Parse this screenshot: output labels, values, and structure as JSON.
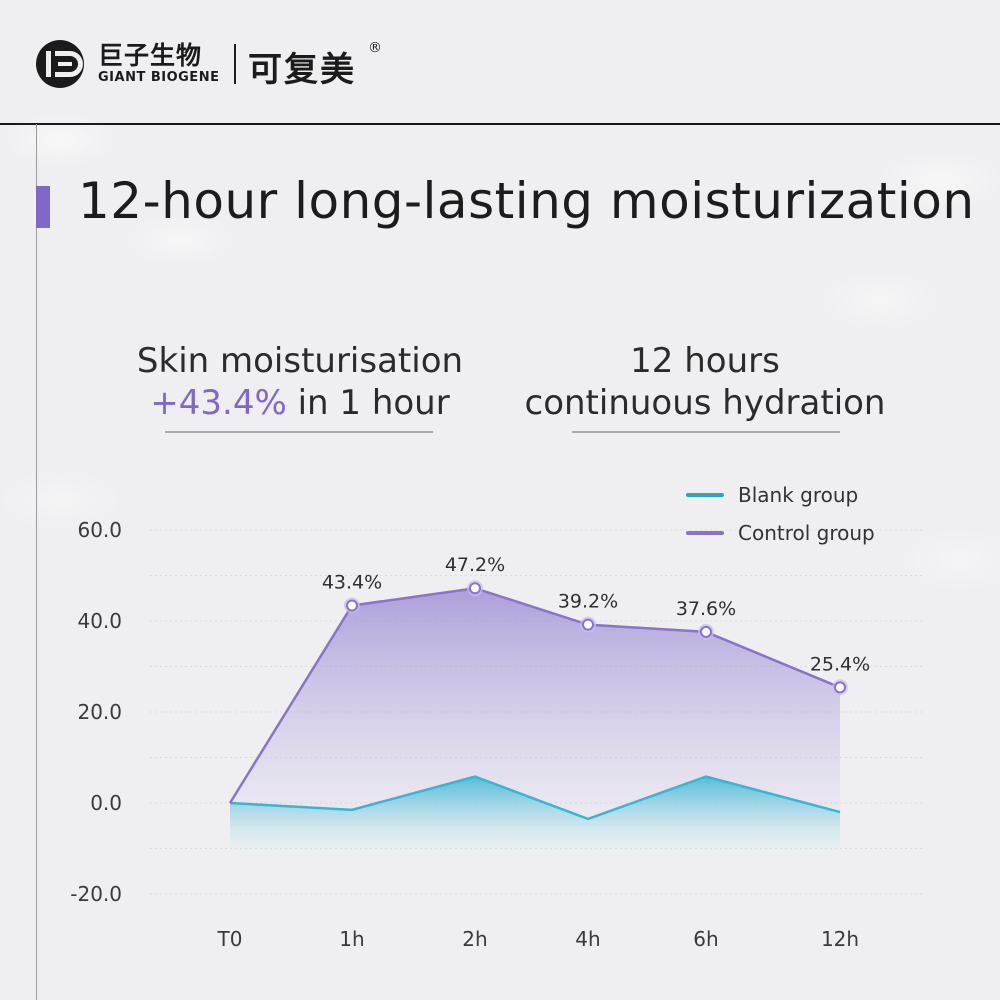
{
  "header": {
    "brand_cn": "巨子生物",
    "brand_en": "GIANT BIOGENE",
    "product_cn": "可复美",
    "registered_mark": "®"
  },
  "title": "12-hour long-lasting moisturization",
  "stats": {
    "left": {
      "line1": "Skin moisturisation",
      "line2_accent": "+43.4%",
      "line2_rest": " in 1 hour"
    },
    "right": {
      "line1_accent": "12 hours",
      "line2": "continuous hydration"
    }
  },
  "colors": {
    "accent": "#7f68c8",
    "control_line": "#8a73cc",
    "blank_line": "#39b5d4"
  },
  "chart_data": {
    "type": "area",
    "x": [
      "T0",
      "1h",
      "2h",
      "4h",
      "6h",
      "12h"
    ],
    "ylim": [
      -20,
      60
    ],
    "yticks": [
      "60.0",
      "40.0",
      "20.0",
      "0.0",
      "-20.0"
    ],
    "grid": true,
    "legend_position": "top-right",
    "series": [
      {
        "name": "Blank group",
        "color": "#39b5d4",
        "values": [
          0,
          -1.5,
          5.8,
          -3.5,
          5.8,
          -2.0
        ]
      },
      {
        "name": "Control group",
        "color": "#8a73cc",
        "values": [
          0,
          43.4,
          47.2,
          39.2,
          37.6,
          25.4
        ],
        "labels": [
          "",
          "43.4%",
          "47.2%",
          "39.2%",
          "37.6%",
          "25.4%"
        ]
      }
    ]
  }
}
